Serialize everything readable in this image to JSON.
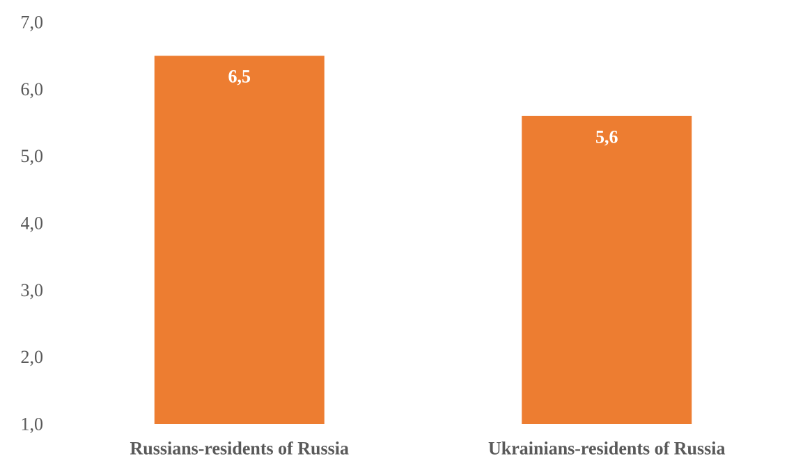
{
  "chart_data": {
    "type": "bar",
    "title": "",
    "xlabel": "",
    "ylabel": "",
    "categories": [
      "Russians-residents of Russia",
      "Ukrainians-residents of Russia"
    ],
    "values": [
      6.5,
      5.6
    ],
    "value_labels": [
      "6,5",
      "5,6"
    ],
    "ylim": [
      1.0,
      7.0
    ],
    "yticks": [
      1.0,
      2.0,
      3.0,
      4.0,
      5.0,
      6.0,
      7.0
    ],
    "ytick_labels": [
      "1,0",
      "2,0",
      "3,0",
      "4,0",
      "5,0",
      "6,0",
      "7,0"
    ],
    "grid": false,
    "legend": "none",
    "bar_color": "#ED7D31"
  }
}
